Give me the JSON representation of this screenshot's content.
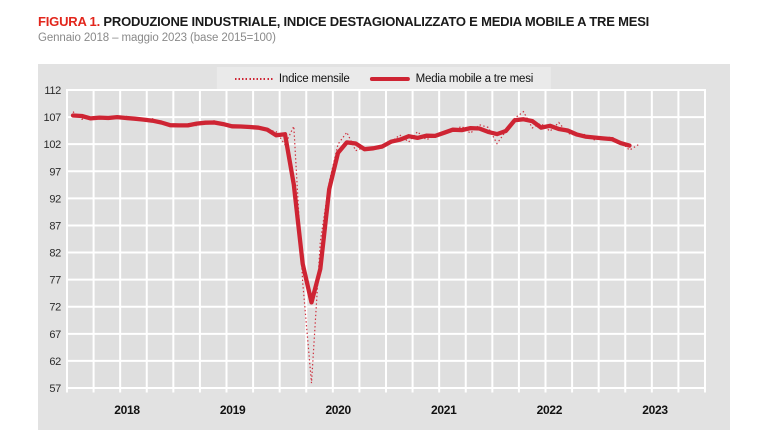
{
  "header": {
    "figura_label": "FIGURA 1.",
    "title": " PRODUZIONE INDUSTRIALE, INDICE DESTAGIONALIZZATO E MEDIA MOBILE A TRE MESI",
    "subtitle": "Gennaio 2018 – maggio 2023 (base 2015=100)"
  },
  "legend": {
    "items": [
      {
        "label": "Indice mensile",
        "style": "dotted"
      },
      {
        "label": "Media mobile a tre mesi",
        "style": "solid"
      }
    ]
  },
  "colors": {
    "accent_red": "#e2261c",
    "line_red": "#ce2433",
    "panel_gray": "#e2e2e2",
    "plot_gray": "#dfdfdf",
    "grid_white": "#ffffff",
    "subtitle_gray": "#8a8a8a"
  },
  "chart_data": {
    "type": "line",
    "title": "Produzione industriale, indice destagionalizzato e media mobile a tre mesi",
    "period_start": "2018-01",
    "period_end": "2023-05",
    "base": "2015=100",
    "ylim": [
      57,
      112
    ],
    "y_ticks": [
      112,
      107,
      102,
      97,
      92,
      87,
      82,
      77,
      72,
      67,
      62,
      57
    ],
    "year_labels": [
      "2018",
      "2019",
      "2020",
      "2021",
      "2022",
      "2023"
    ],
    "grid": "white gridlines: quarterly vertical, 5-unit horizontal; legend top center",
    "series": [
      {
        "name": "Indice mensile",
        "style": "dotted"
      },
      {
        "name": "Media mobile a tre mesi",
        "style": "solid",
        "derivation": "centered 3-month moving average of Indice mensile, ends one month before last"
      }
    ],
    "monthly_index": [
      108.0,
      106.6,
      107.0,
      106.7,
      107.0,
      106.8,
      107.2,
      106.5,
      106.4,
      106.7,
      105.9,
      105.4,
      105.2,
      105.8,
      105.4,
      106.2,
      106.3,
      105.5,
      105.3,
      105.1,
      105.4,
      105.0,
      104.7,
      104.3,
      101.9,
      105.3,
      76.5,
      57.9,
      84.0,
      95.0,
      102.0,
      104.2,
      100.8,
      101.4,
      101.0,
      101.3,
      102.4,
      103.7,
      102.4,
      104.3,
      102.8,
      103.6,
      104.2,
      104.5,
      105.3,
      104.0,
      105.6,
      105.1,
      102.1,
      104.4,
      106.8,
      108.0,
      105.0,
      105.8,
      104.4,
      106.0,
      104.0,
      103.6,
      103.8,
      102.8,
      103.1,
      103.3,
      102.4,
      100.9,
      101.9
    ]
  }
}
